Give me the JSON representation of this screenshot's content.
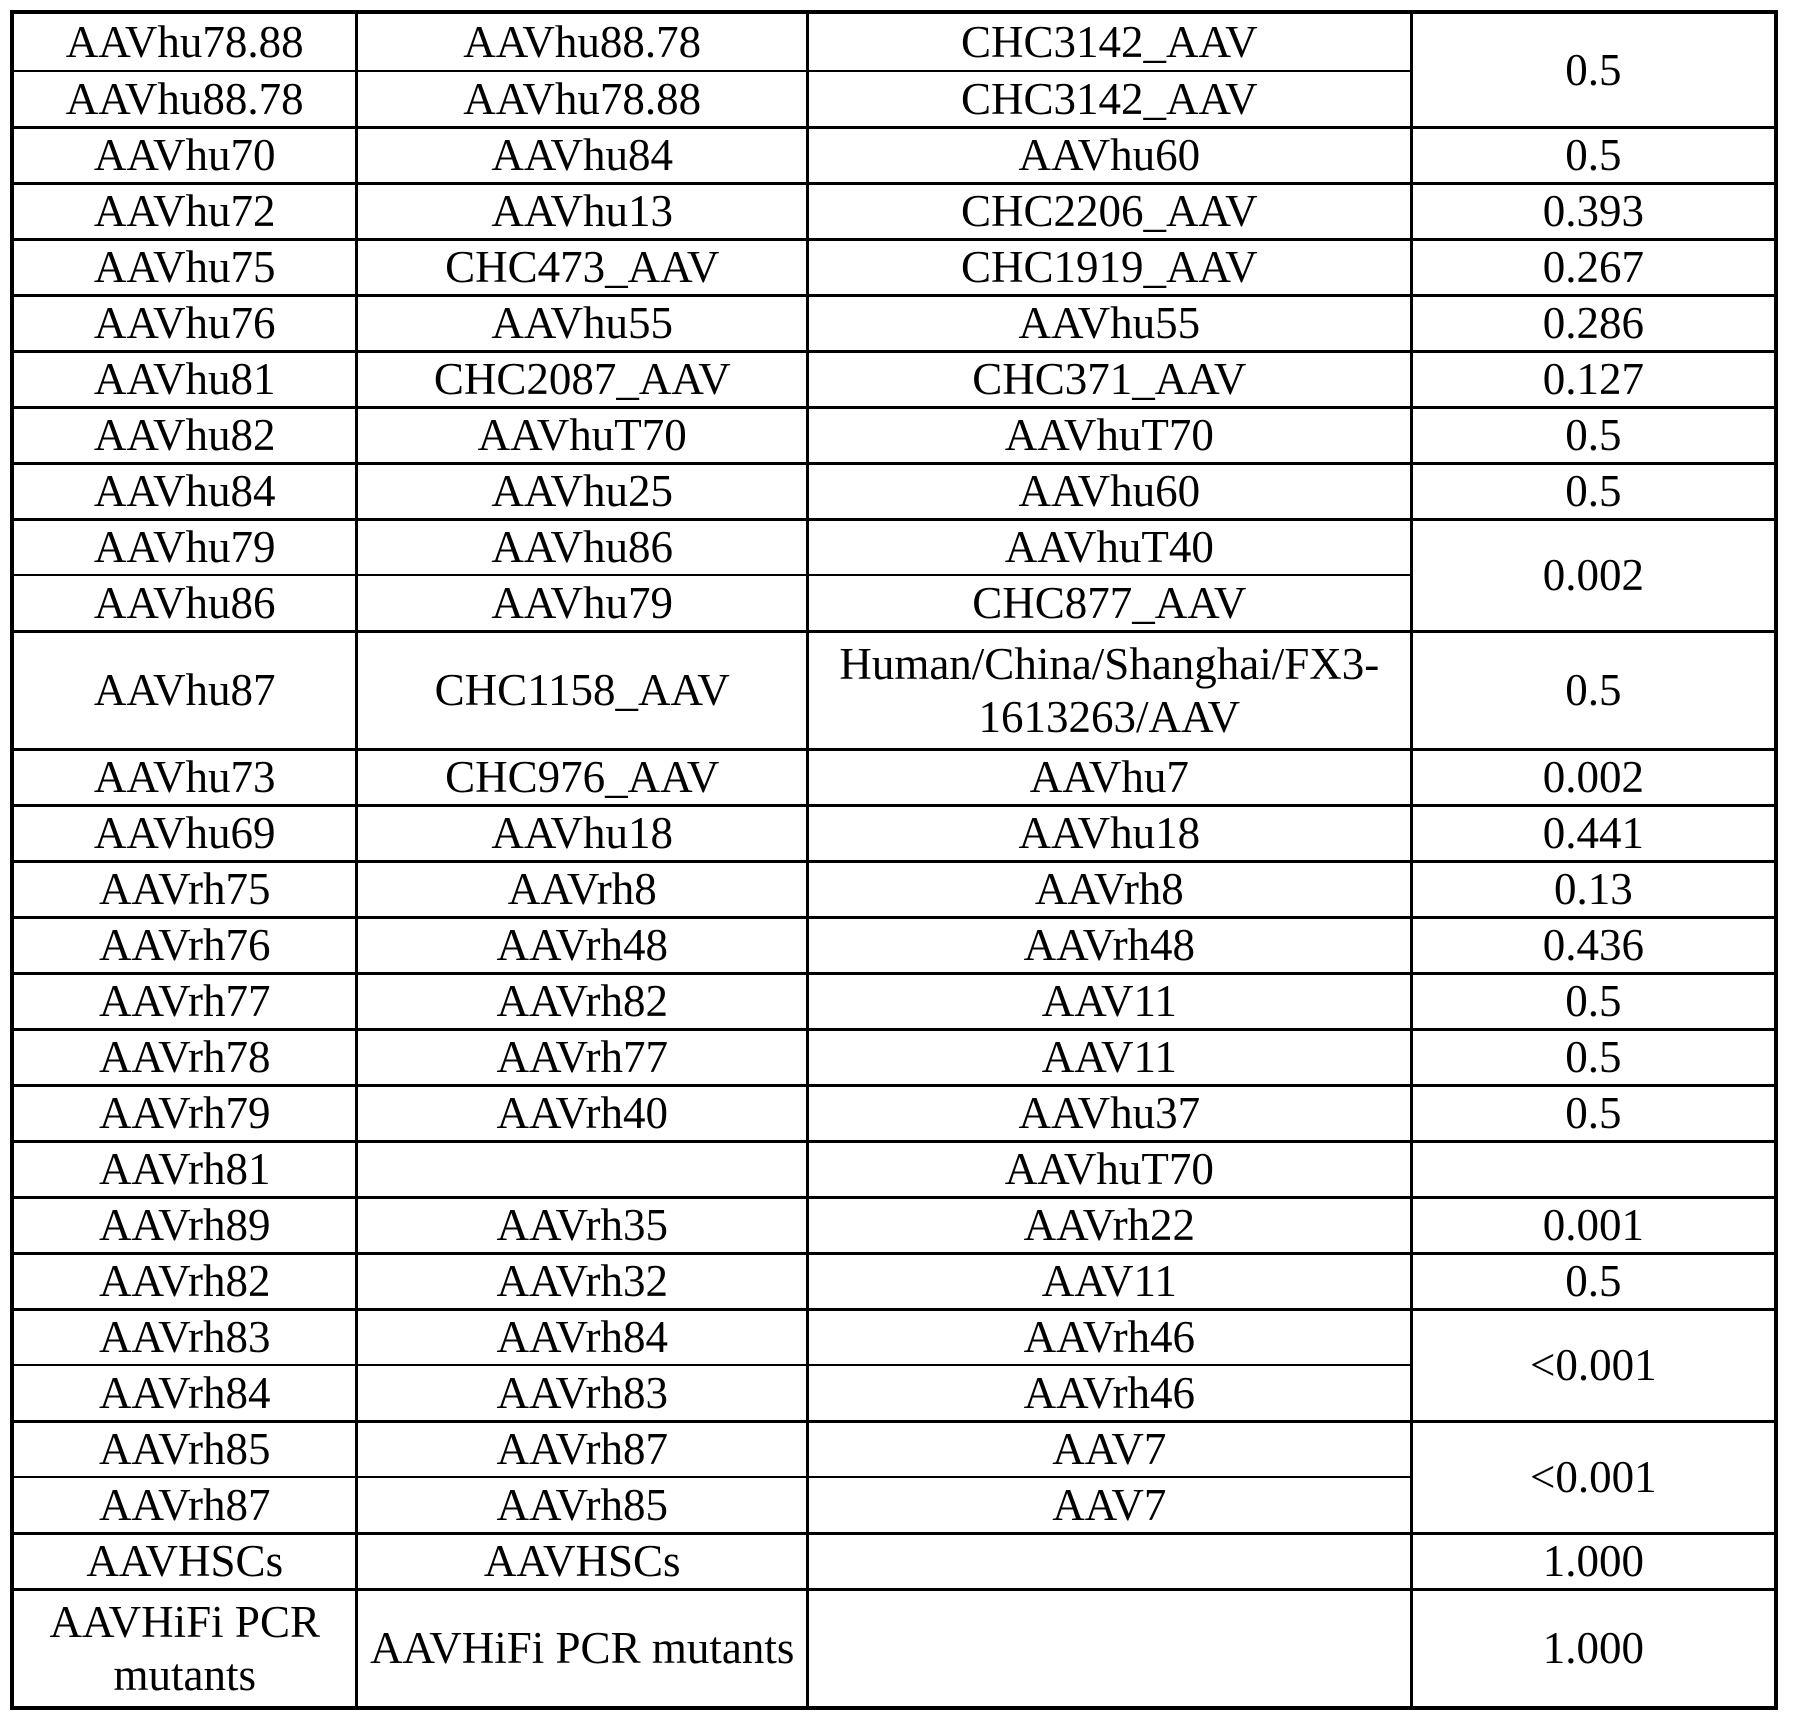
{
  "table": {
    "rows": [
      {
        "cells": [
          "AAVhu78.88",
          "AAVhu88.78",
          "CHC3142_AAV"
        ],
        "value": "0.5",
        "value_rowspan": 2
      },
      {
        "cells": [
          "AAVhu88.78",
          "AAVhu78.88",
          "CHC3142_AAV"
        ],
        "in_merged_group": true
      },
      {
        "cells": [
          "AAVhu70",
          "AAVhu84",
          "AAVhu60"
        ],
        "value": "0.5"
      },
      {
        "cells": [
          "AAVhu72",
          "AAVhu13",
          "CHC2206_AAV"
        ],
        "value": "0.393"
      },
      {
        "cells": [
          "AAVhu75",
          "CHC473_AAV",
          "CHC1919_AAV"
        ],
        "value": "0.267"
      },
      {
        "cells": [
          "AAVhu76",
          "AAVhu55",
          "AAVhu55"
        ],
        "value": "0.286"
      },
      {
        "cells": [
          "AAVhu81",
          "CHC2087_AAV",
          "CHC371_AAV"
        ],
        "value": "0.127"
      },
      {
        "cells": [
          "AAVhu82",
          "AAVhuT70",
          "AAVhuT70"
        ],
        "value": "0.5"
      },
      {
        "cells": [
          "AAVhu84",
          "AAVhu25",
          "AAVhu60"
        ],
        "value": "0.5"
      },
      {
        "cells": [
          "AAVhu79",
          "AAVhu86",
          "AAVhuT40"
        ],
        "value": "0.002",
        "value_rowspan": 2
      },
      {
        "cells": [
          "AAVhu86",
          "AAVhu79",
          "CHC877_AAV"
        ],
        "in_merged_group": true
      },
      {
        "cells": [
          "AAVhu87",
          "CHC1158_AAV",
          "Human/China/Shanghai/FX3-\n1613263/AAV"
        ],
        "value": "0.5",
        "tall": true
      },
      {
        "cells": [
          "AAVhu73",
          "CHC976_AAV",
          "AAVhu7"
        ],
        "value": "0.002"
      },
      {
        "cells": [
          "AAVhu69",
          "AAVhu18",
          "AAVhu18"
        ],
        "value": "0.441"
      },
      {
        "cells": [
          "AAVrh75",
          "AAVrh8",
          "AAVrh8"
        ],
        "value": "0.13"
      },
      {
        "cells": [
          "AAVrh76",
          "AAVrh48",
          "AAVrh48"
        ],
        "value": "0.436"
      },
      {
        "cells": [
          "AAVrh77",
          "AAVrh82",
          "AAV11"
        ],
        "value": "0.5"
      },
      {
        "cells": [
          "AAVrh78",
          "AAVrh77",
          "AAV11"
        ],
        "value": "0.5"
      },
      {
        "cells": [
          "AAVrh79",
          "AAVrh40",
          "AAVhu37"
        ],
        "value": "0.5"
      },
      {
        "cells": [
          "AAVrh81",
          "",
          "AAVhuT70"
        ],
        "value": ""
      },
      {
        "cells": [
          "AAVrh89",
          "AAVrh35",
          "AAVrh22"
        ],
        "value": "0.001"
      },
      {
        "cells": [
          "AAVrh82",
          "AAVrh32",
          "AAV11"
        ],
        "value": "0.5"
      },
      {
        "cells": [
          "AAVrh83",
          "AAVrh84",
          "AAVrh46"
        ],
        "value": "<0.001",
        "value_rowspan": 2
      },
      {
        "cells": [
          "AAVrh84",
          "AAVrh83",
          "AAVrh46"
        ],
        "in_merged_group": true
      },
      {
        "cells": [
          "AAVrh85",
          "AAVrh87",
          "AAV7"
        ],
        "value": "<0.001",
        "value_rowspan": 2
      },
      {
        "cells": [
          "AAVrh87",
          "AAVrh85",
          "AAV7"
        ],
        "in_merged_group": true
      },
      {
        "cells": [
          "AAVHSCs",
          "AAVHSCs",
          ""
        ],
        "value": "1.000"
      },
      {
        "cells": [
          "AAVHiFi PCR mutants",
          "AAVHiFi PCR mutants",
          ""
        ],
        "value": "1.000",
        "tall": true
      }
    ]
  }
}
